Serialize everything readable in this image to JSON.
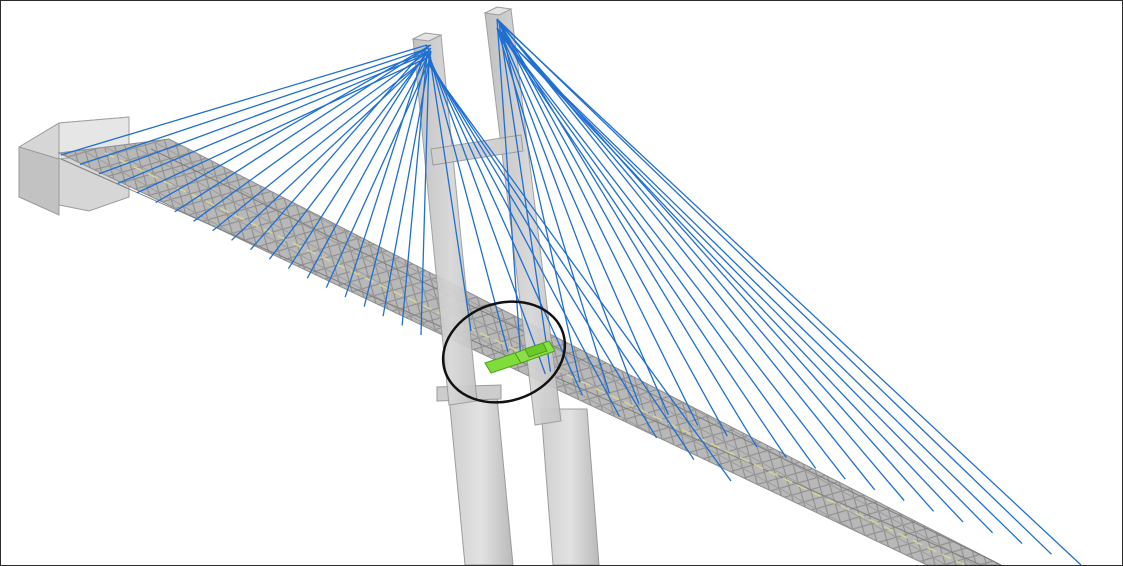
{
  "figure": {
    "subject": "cable-stayed-bridge-3d-model",
    "colors": {
      "background": "#ffffff",
      "border": "#2b2b2b",
      "concrete": "#c9c9c9",
      "concrete_dark": "#a8a8a8",
      "deck_truss": "#9a9a9a",
      "deck_centerline": "#d8d39a",
      "stay_cable": "#1f6fd1",
      "highlight_green": "#7fdc3a",
      "callout_ellipse": "#111111"
    },
    "callout": {
      "shape": "ellipse",
      "marks": "highlighted-deck-elements-near-pylon"
    },
    "stay_cable_count": 40
  }
}
